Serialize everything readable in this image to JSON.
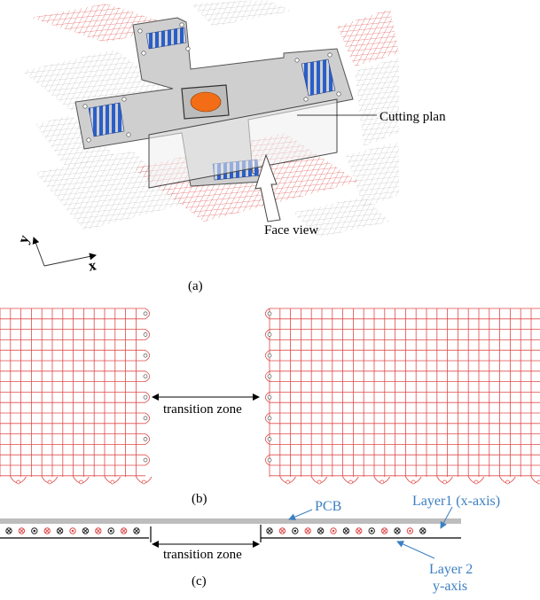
{
  "panel_a": {
    "cutting_plan_label": "Cutting plan",
    "face_view_label": "Face view",
    "axis_y_label": "y",
    "axis_x_label": "x",
    "caption": "(a)"
  },
  "panel_b": {
    "transition_label": "transition zone",
    "caption": "(b)"
  },
  "panel_c": {
    "pcb_label": "PCB",
    "layer1_label": "Layer1 (x-axis)",
    "layer2_line1": "Layer 2",
    "layer2_line2": "y-axis",
    "transition_label": "transition zone",
    "caption": "(c)"
  },
  "colors": {
    "wire_red": "#e04a4a",
    "wire_gray": "#b9b9b9",
    "plate": "#cfcfcf",
    "coil_blue": "#2a5fc9",
    "disc_orange": "#f26d16",
    "annotation_blue": "#3a7fc1"
  }
}
